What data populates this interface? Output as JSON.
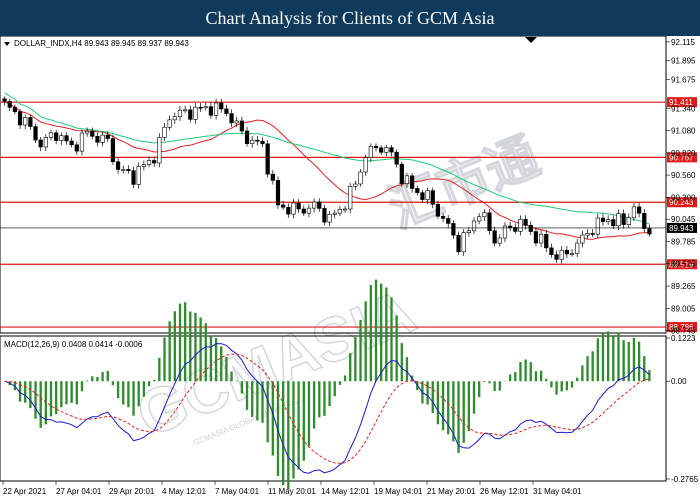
{
  "header": {
    "title": "Chart Analysis for Clients of GCM Asia"
  },
  "watermark": {
    "text": "GCMASIA",
    "chinese": "汇市通",
    "sub": "GCMASIA GLOBAL MARKETS"
  },
  "chart_data": [
    {
      "type": "candlestick",
      "symbol_line": "DOLLAR_INDX,H4  89.943 89.945 89.937 89.943",
      "ylim": [
        88.74,
        92.16
      ],
      "y_ticks": [
        "92.115",
        "91.895",
        "91.675",
        "91.340",
        "91.080",
        "90.820",
        "90.560",
        "90.300",
        "90.045",
        "89.785",
        "89.525",
        "89.265",
        "89.005",
        "88.745"
      ],
      "current_price": "89.943",
      "levels": [
        {
          "value": 91.411,
          "label": "91.411"
        },
        {
          "value": 90.767,
          "label": "90.767"
        },
        {
          "value": 90.243,
          "label": "90.243"
        },
        {
          "value": 89.519,
          "label": "89.519"
        },
        {
          "value": 88.786,
          "label": "88.786"
        }
      ],
      "x_labels": [
        "22 Apr 2021",
        "27 Apr 04:01",
        "29 Apr 20:01",
        "4 May 12:01",
        "7 May 04:01",
        "11 May 20:01",
        "14 May 12:01",
        "19 May 04:01",
        "21 May 20:01",
        "26 May 12:01",
        "31 May 04:01"
      ],
      "close_anchors": [
        [
          0,
          91.38
        ],
        [
          4,
          91.18
        ],
        [
          7,
          90.92
        ],
        [
          10,
          91.05
        ],
        [
          13,
          90.88
        ],
        [
          16,
          91.05
        ],
        [
          20,
          90.95
        ],
        [
          22,
          90.62
        ],
        [
          25,
          90.55
        ],
        [
          29,
          90.78
        ],
        [
          32,
          91.25
        ],
        [
          36,
          91.3
        ],
        [
          40,
          91.35
        ],
        [
          43,
          91.3
        ],
        [
          46,
          91.05
        ],
        [
          48,
          90.95
        ],
        [
          50,
          90.9
        ],
        [
          53,
          90.2
        ],
        [
          57,
          90.15
        ],
        [
          60,
          90.2
        ],
        [
          63,
          90.05
        ],
        [
          65,
          90.15
        ],
        [
          68,
          90.45
        ],
        [
          70,
          90.8
        ],
        [
          73,
          90.9
        ],
        [
          75,
          90.8
        ],
        [
          77,
          90.55
        ],
        [
          79,
          90.4
        ],
        [
          82,
          90.3
        ],
        [
          85,
          90.05
        ],
        [
          88,
          89.75
        ],
        [
          90,
          89.9
        ],
        [
          92,
          90.15
        ],
        [
          95,
          89.8
        ],
        [
          98,
          89.95
        ],
        [
          100,
          90.0
        ],
        [
          103,
          89.85
        ],
        [
          106,
          89.65
        ],
        [
          108,
          89.6
        ],
        [
          111,
          89.75
        ],
        [
          114,
          89.95
        ],
        [
          117,
          90.05
        ],
        [
          120,
          90.0
        ],
        [
          122,
          90.2
        ],
        [
          123,
          90.05
        ],
        [
          124,
          89.95
        ],
        [
          125,
          89.94
        ]
      ],
      "series": [
        {
          "name": "",
          "color": "#e02020",
          "period": 20
        },
        {
          "name": "",
          "color": "#20c878",
          "period": 50
        }
      ]
    },
    {
      "type": "macd",
      "label": "MACD(12,26,9)  0.0408 0.0414 -0.0006",
      "ylim": [
        -0.2765,
        0.1223
      ],
      "y_ticks": [
        "0.1223",
        "0.00",
        "-0.2765"
      ],
      "colors": {
        "histogram": "#2e8b2e",
        "macd": "#1a1acc",
        "signal": "#dd2222"
      }
    }
  ]
}
